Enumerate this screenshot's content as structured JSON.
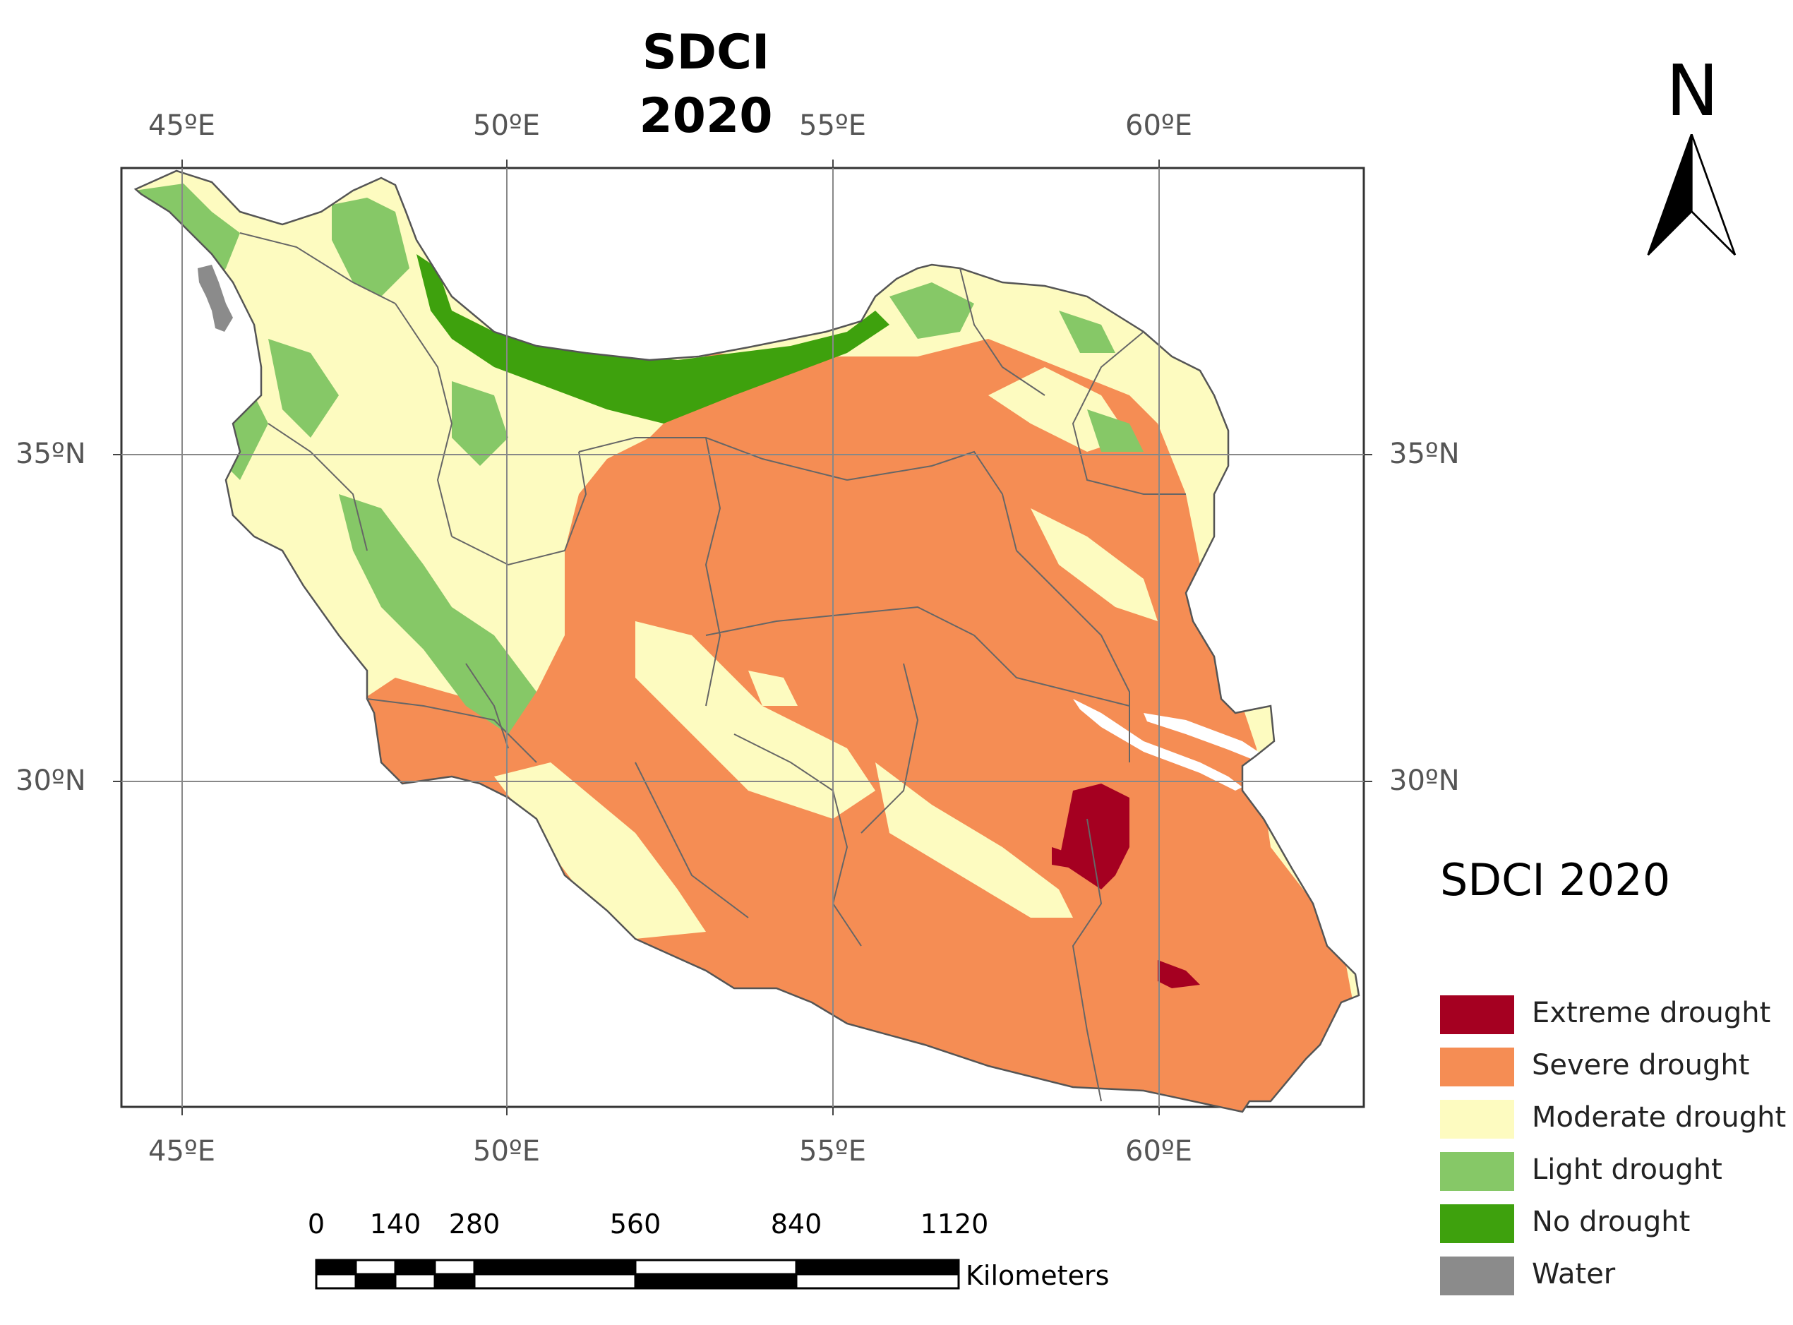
{
  "title_line1": "SDCI",
  "title_line2": "2020",
  "north_arrow": {
    "label": "N",
    "icon": "north-arrow-icon"
  },
  "longitude_labels": [
    "45ºE",
    "50ºE",
    "55ºE",
    "60ºE"
  ],
  "latitude_labels": [
    "35ºN",
    "30ºN"
  ],
  "legend": {
    "title": "SDCI 2020",
    "items": [
      {
        "label": "Extreme drought",
        "color": "#a50021"
      },
      {
        "label": "Severe drought",
        "color": "#f58d54"
      },
      {
        "label": "Moderate drought",
        "color": "#fdfbc0"
      },
      {
        "label": "Light drought",
        "color": "#86c867"
      },
      {
        "label": "No drought",
        "color": "#3ea10d"
      },
      {
        "label": "Water",
        "color": "#8b8b8b"
      }
    ]
  },
  "scale_bar": {
    "ticks": [
      "0",
      "140",
      "280",
      "560",
      "840",
      "1120"
    ],
    "units": "Kilometers"
  }
}
